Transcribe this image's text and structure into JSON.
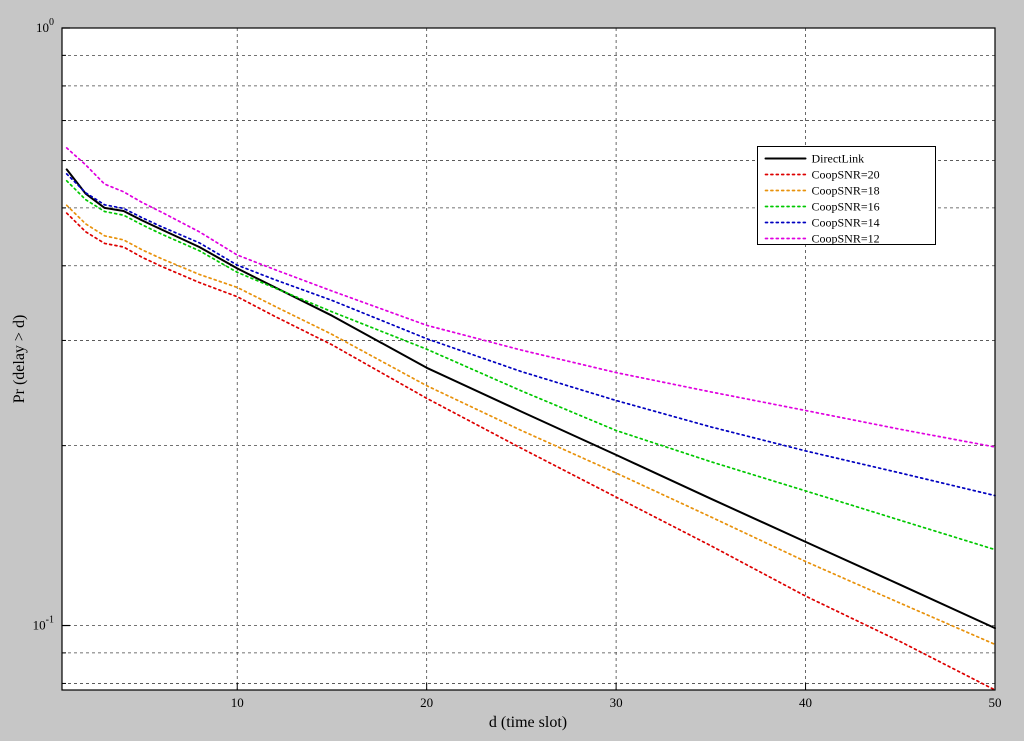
{
  "figure": {
    "background_color": "#c6c6c6",
    "plot_background_color": "#ffffff",
    "grid_color": "#444444",
    "axis_color": "#000000"
  },
  "chart_data": {
    "type": "line",
    "title": "",
    "xlabel": "d (time slot)",
    "ylabel": "Pr (delay > d)",
    "y_scale": "log",
    "grid": "dashed",
    "legend_position": "upper-right-inside",
    "xlim": [
      0.75,
      50
    ],
    "ylim": [
      0.078,
      1.0
    ],
    "x_ticks": [
      10,
      20,
      30,
      40,
      50
    ],
    "y_ticks": [
      {
        "label_base": "10",
        "label_exp": "0",
        "value": 1.0
      },
      {
        "label_base": "10",
        "label_exp": "-1",
        "value": 0.1
      }
    ],
    "x_gridlines": [
      10,
      20,
      30,
      40,
      50
    ],
    "y_gridlines": [
      0.9,
      0.8,
      0.7,
      0.6,
      0.5,
      0.4,
      0.3,
      0.2,
      0.1,
      0.09,
      0.08
    ],
    "x": [
      1,
      2,
      3,
      4,
      5,
      6,
      8,
      10,
      12,
      15,
      20,
      25,
      30,
      35,
      40,
      45,
      50
    ],
    "series": [
      {
        "name": "DirectLink",
        "color": "#000000",
        "style": "solid",
        "values": [
          0.58,
          0.528,
          0.5,
          0.494,
          0.476,
          0.46,
          0.43,
          0.396,
          0.368,
          0.33,
          0.27,
          0.228,
          0.193,
          0.163,
          0.138,
          0.117,
          0.099
        ]
      },
      {
        "name": "CoopSNR=20",
        "color": "#dd0000",
        "style": "dotted",
        "values": [
          0.49,
          0.456,
          0.436,
          0.43,
          0.413,
          0.399,
          0.375,
          0.355,
          0.329,
          0.295,
          0.24,
          0.198,
          0.164,
          0.136,
          0.112,
          0.094,
          0.078
        ]
      },
      {
        "name": "CoopSNR=18",
        "color": "#e8920c",
        "style": "dotted",
        "values": [
          0.505,
          0.47,
          0.449,
          0.442,
          0.425,
          0.411,
          0.387,
          0.368,
          0.342,
          0.307,
          0.252,
          0.212,
          0.18,
          0.152,
          0.128,
          0.109,
          0.093
        ]
      },
      {
        "name": "CoopSNR=16",
        "color": "#00c800",
        "style": "dotted",
        "values": [
          0.555,
          0.516,
          0.493,
          0.486,
          0.468,
          0.452,
          0.424,
          0.39,
          0.367,
          0.335,
          0.29,
          0.247,
          0.212,
          0.188,
          0.168,
          0.15,
          0.134
        ]
      },
      {
        "name": "CoopSNR=14",
        "color": "#0000c0",
        "style": "dotted",
        "values": [
          0.57,
          0.53,
          0.506,
          0.499,
          0.481,
          0.465,
          0.437,
          0.401,
          0.379,
          0.35,
          0.302,
          0.266,
          0.238,
          0.215,
          0.196,
          0.18,
          0.165
        ]
      },
      {
        "name": "CoopSNR=12",
        "color": "#e000e0",
        "style": "dotted",
        "values": [
          0.63,
          0.59,
          0.548,
          0.532,
          0.51,
          0.492,
          0.456,
          0.417,
          0.394,
          0.363,
          0.318,
          0.289,
          0.265,
          0.246,
          0.229,
          0.213,
          0.199
        ]
      }
    ]
  }
}
